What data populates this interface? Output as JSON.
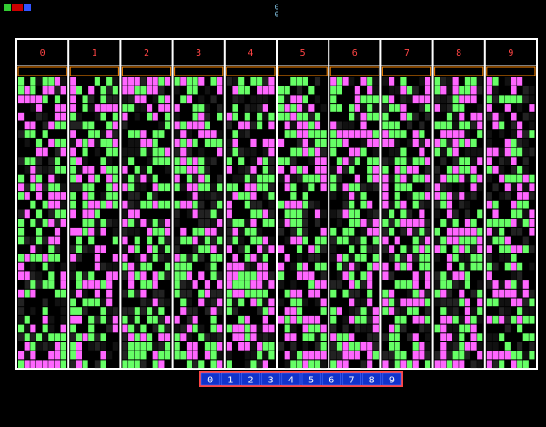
{
  "header": {
    "score": [
      "0",
      "0"
    ]
  },
  "columns": [
    "0",
    "1",
    "2",
    "3",
    "4",
    "5",
    "6",
    "7",
    "8",
    "9"
  ],
  "buttons": [
    "0",
    "1",
    "2",
    "3",
    "4",
    "5",
    "6",
    "7",
    "8",
    "9"
  ]
}
